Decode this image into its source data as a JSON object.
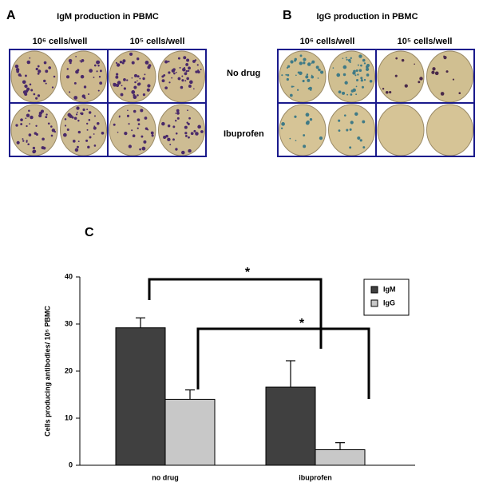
{
  "panels": [
    {
      "label": "A",
      "title": "IgM production in PBMC",
      "columns": [
        "10⁶ cells/well",
        "10⁵ cells/well"
      ]
    },
    {
      "label": "B",
      "title": "IgG production in PBMC",
      "columns": [
        "10⁶ cells/well",
        "10⁵ cells/well"
      ]
    }
  ],
  "rows": [
    "No drug",
    "Ibuprofen"
  ],
  "chart_data": {
    "type": "bar",
    "panel_label": "C",
    "y_label": "Cells producing antibodies/ 10⁵ PBMC",
    "categories": [
      "no drug",
      "ibuprofen"
    ],
    "series": [
      {
        "name": "IgM",
        "color": "#404040",
        "values": [
          29.2,
          16.6
        ],
        "errors": [
          2.1,
          5.6
        ]
      },
      {
        "name": "IgG",
        "color": "#c8c8c8",
        "values": [
          14,
          3.3
        ],
        "errors": [
          2,
          1.5
        ]
      }
    ],
    "ylim": [
      0,
      40
    ],
    "yticks": [
      0,
      10,
      20,
      30,
      40
    ],
    "grid": false,
    "legend": "upper right",
    "annotations": [
      "*",
      "*"
    ]
  }
}
